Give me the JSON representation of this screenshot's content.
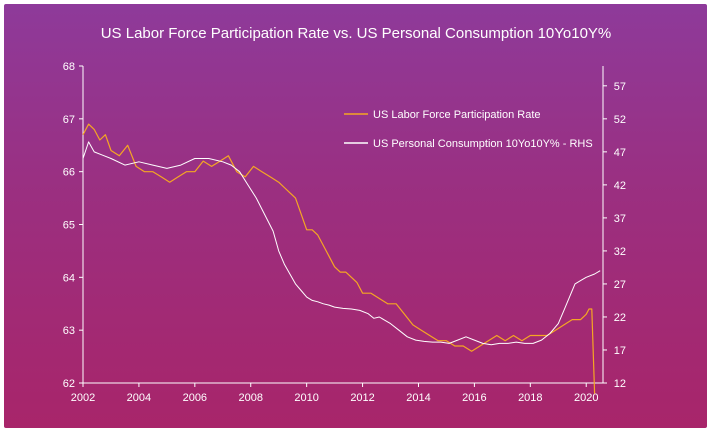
{
  "chart_data": {
    "type": "line",
    "title": "US Labor Force Participation Rate vs. US Personal Consumption 10Yo10Y%",
    "xlabel": "",
    "ylabel_left": "",
    "ylabel_right": "",
    "xlim": [
      2002,
      2020.6
    ],
    "ylim_left": [
      62,
      68
    ],
    "ylim_right": [
      12,
      60
    ],
    "x_ticks": [
      "2002",
      "2004",
      "2006",
      "2008",
      "2010",
      "2012",
      "2014",
      "2016",
      "2018",
      "2020"
    ],
    "y_ticks_left": [
      "62",
      "63",
      "64",
      "65",
      "66",
      "67",
      "68"
    ],
    "y_ticks_right": [
      "12",
      "17",
      "22",
      "27",
      "32",
      "37",
      "42",
      "47",
      "52",
      "57"
    ],
    "legend_position": "top-right",
    "grid": false,
    "colors": {
      "lfpr": "#f5a623",
      "pc": "#ffffff",
      "axis": "#ffffff"
    },
    "series": [
      {
        "name": "US Labor Force Participation Rate",
        "axis": "left",
        "x": [
          2002.0,
          2002.2,
          2002.4,
          2002.6,
          2002.8,
          2003.0,
          2003.3,
          2003.6,
          2003.9,
          2004.2,
          2004.5,
          2004.8,
          2005.1,
          2005.4,
          2005.7,
          2006.0,
          2006.3,
          2006.6,
          2006.9,
          2007.2,
          2007.5,
          2007.8,
          2008.1,
          2008.4,
          2008.7,
          2009.0,
          2009.2,
          2009.4,
          2009.6,
          2009.8,
          2010.0,
          2010.2,
          2010.4,
          2010.6,
          2010.8,
          2011.0,
          2011.2,
          2011.4,
          2011.6,
          2011.8,
          2012.0,
          2012.3,
          2012.6,
          2012.9,
          2013.2,
          2013.5,
          2013.8,
          2014.1,
          2014.4,
          2014.7,
          2015.0,
          2015.3,
          2015.6,
          2015.9,
          2016.2,
          2016.5,
          2016.8,
          2017.1,
          2017.4,
          2017.7,
          2018.0,
          2018.3,
          2018.6,
          2018.9,
          2019.2,
          2019.5,
          2019.8,
          2020.0,
          2020.1,
          2020.2,
          2020.3
        ],
        "values": [
          66.7,
          66.9,
          66.8,
          66.6,
          66.7,
          66.4,
          66.3,
          66.5,
          66.1,
          66.0,
          66.0,
          65.9,
          65.8,
          65.9,
          66.0,
          66.0,
          66.2,
          66.1,
          66.2,
          66.3,
          66.0,
          65.9,
          66.1,
          66.0,
          65.9,
          65.8,
          65.7,
          65.6,
          65.5,
          65.2,
          64.9,
          64.9,
          64.8,
          64.6,
          64.4,
          64.2,
          64.1,
          64.1,
          64.0,
          63.9,
          63.7,
          63.7,
          63.6,
          63.5,
          63.5,
          63.3,
          63.1,
          63.0,
          62.9,
          62.8,
          62.8,
          62.7,
          62.7,
          62.6,
          62.7,
          62.8,
          62.9,
          62.8,
          62.9,
          62.8,
          62.9,
          62.9,
          62.9,
          63.0,
          63.1,
          63.2,
          63.2,
          63.3,
          63.4,
          63.4,
          61.8
        ]
      },
      {
        "name": "US Personal Consumption 10Yo10Y% - RHS",
        "axis": "right",
        "x": [
          2002.0,
          2002.2,
          2002.4,
          2002.7,
          2003.0,
          2003.5,
          2004.0,
          2004.5,
          2005.0,
          2005.5,
          2006.0,
          2006.5,
          2007.0,
          2007.3,
          2007.6,
          2007.9,
          2008.2,
          2008.5,
          2008.8,
          2009.0,
          2009.2,
          2009.4,
          2009.6,
          2009.8,
          2010.0,
          2010.2,
          2010.4,
          2010.6,
          2010.8,
          2011.0,
          2011.3,
          2011.6,
          2011.9,
          2012.2,
          2012.4,
          2012.6,
          2012.8,
          2013.0,
          2013.3,
          2013.6,
          2013.9,
          2014.2,
          2014.5,
          2014.8,
          2015.1,
          2015.4,
          2015.7,
          2016.0,
          2016.3,
          2016.6,
          2016.9,
          2017.2,
          2017.5,
          2017.8,
          2018.1,
          2018.4,
          2018.7,
          2019.0,
          2019.2,
          2019.4,
          2019.6,
          2019.8,
          2020.0,
          2020.3,
          2020.5
        ],
        "values": [
          46,
          48.5,
          47,
          46.5,
          46,
          45,
          45.5,
          45,
          44.5,
          45,
          46,
          46,
          45.5,
          45,
          44,
          42,
          40,
          37.5,
          35,
          32,
          30,
          28.5,
          27,
          26,
          25,
          24.5,
          24.3,
          24.0,
          23.8,
          23.5,
          23.3,
          23.2,
          23.0,
          22.5,
          21.8,
          22.0,
          21.5,
          21.0,
          20.0,
          19.0,
          18.5,
          18.3,
          18.2,
          18.2,
          18.0,
          18.5,
          19.0,
          18.5,
          18.0,
          17.8,
          18.0,
          18.0,
          18.2,
          18.0,
          18.0,
          18.5,
          19.5,
          21,
          23,
          25,
          27,
          27.5,
          28,
          28.5,
          29
        ]
      }
    ]
  }
}
